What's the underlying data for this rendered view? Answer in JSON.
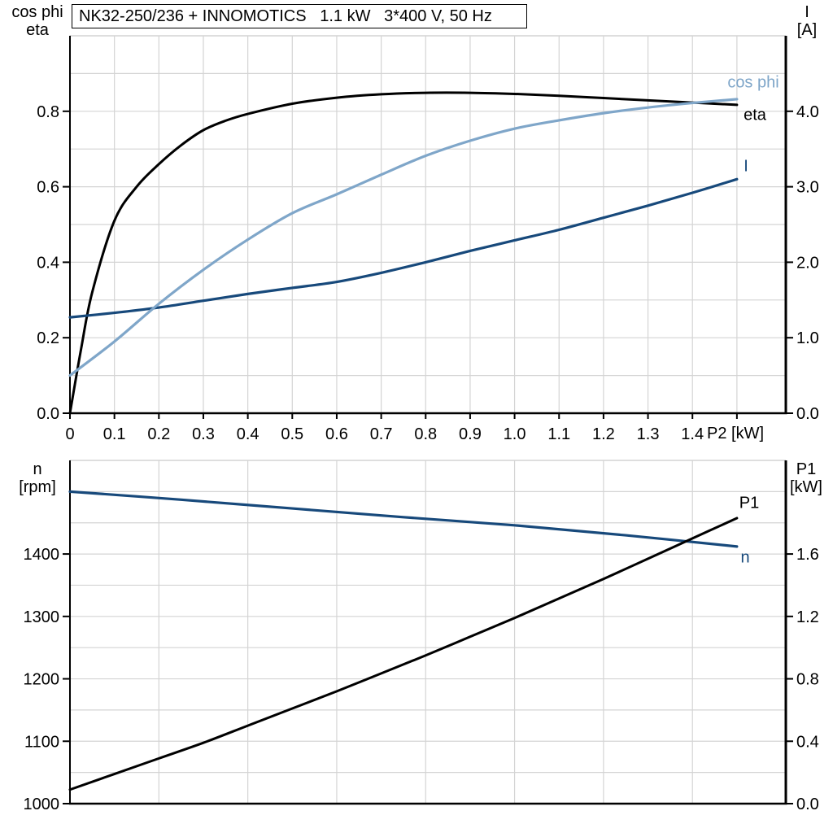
{
  "title": "NK32-250/236 + INNOMOTICS   1.1 kW   3*400 V, 50 Hz",
  "colors": {
    "eta": "#000000",
    "cos_phi": "#7FA6C9",
    "current": "#17497B",
    "speed": "#17497B",
    "p1": "#000000",
    "grid": "#D4D4D4",
    "axis": "#000000",
    "background": "#FFFFFF"
  },
  "chart_data": [
    {
      "id": "electrical",
      "type": "line",
      "x": {
        "min": 0,
        "max": 1.61,
        "grid_step": 0.1,
        "ticks": [
          0,
          0.1,
          0.2,
          0.3,
          0.4,
          0.5,
          0.6,
          0.7,
          0.8,
          0.9,
          1.0,
          1.1,
          1.2,
          1.3,
          1.4,
          1.5
        ],
        "labels": [
          "0",
          "0.1",
          "0.2",
          "0.3",
          "0.4",
          "0.5",
          "0.6",
          "0.7",
          "0.8",
          "0.9",
          "1.0",
          "1.1",
          "1.2",
          "1.3",
          "1.4",
          ""
        ],
        "unit_label": "P2 [kW]"
      },
      "y_left": {
        "min": 0,
        "max": 1.0,
        "grid_step": 0.1,
        "ticks": [
          0,
          0.2,
          0.4,
          0.6,
          0.8
        ],
        "labels": [
          "0.0",
          "0.2",
          "0.4",
          "0.6",
          "0.8"
        ],
        "header": [
          "cos phi",
          "eta"
        ]
      },
      "y_right": {
        "min": 0,
        "max": 5.0,
        "grid_step": 0.5,
        "ticks": [
          0,
          1,
          2,
          3,
          4
        ],
        "labels": [
          "0.0",
          "1.0",
          "2.0",
          "3.0",
          "4.0"
        ],
        "header": [
          "I",
          "[A]"
        ]
      },
      "series": [
        {
          "id": "eta",
          "label": "eta",
          "axis": "left",
          "color": "#000000",
          "width": 3,
          "x": [
            0,
            0.025,
            0.05,
            0.1,
            0.15,
            0.2,
            0.25,
            0.3,
            0.35,
            0.4,
            0.5,
            0.6,
            0.7,
            0.8,
            0.9,
            1.0,
            1.1,
            1.2,
            1.3,
            1.4,
            1.5
          ],
          "y": [
            0,
            0.17,
            0.32,
            0.51,
            0.6,
            0.66,
            0.71,
            0.75,
            0.775,
            0.793,
            0.82,
            0.836,
            0.845,
            0.849,
            0.849,
            0.846,
            0.841,
            0.835,
            0.829,
            0.823,
            0.817
          ]
        },
        {
          "id": "current-I",
          "label": "I",
          "axis": "right",
          "color": "#17497B",
          "width": 3.2,
          "x": [
            0,
            0.1,
            0.2,
            0.3,
            0.4,
            0.5,
            0.6,
            0.7,
            0.8,
            0.9,
            1.0,
            1.1,
            1.2,
            1.3,
            1.4,
            1.5
          ],
          "y": [
            1.27,
            1.33,
            1.4,
            1.49,
            1.58,
            1.66,
            1.74,
            1.86,
            2.0,
            2.15,
            2.29,
            2.43,
            2.59,
            2.75,
            2.92,
            3.1
          ]
        },
        {
          "id": "cos-phi",
          "label": "cos phi",
          "axis": "left",
          "color": "#7FA6C9",
          "width": 3.2,
          "x": [
            0,
            0.1,
            0.2,
            0.3,
            0.4,
            0.5,
            0.6,
            0.7,
            0.8,
            0.9,
            1.0,
            1.1,
            1.2,
            1.3,
            1.4,
            1.5
          ],
          "y": [
            0.1,
            0.19,
            0.29,
            0.38,
            0.46,
            0.53,
            0.58,
            0.632,
            0.682,
            0.722,
            0.754,
            0.776,
            0.795,
            0.81,
            0.822,
            0.832
          ]
        }
      ]
    },
    {
      "id": "speed-power",
      "type": "line",
      "x": {
        "min": 0,
        "max": 1.61,
        "grid_step": 0.2,
        "ticks": [],
        "labels": [],
        "unit_label": ""
      },
      "y_left": {
        "min": 1000,
        "max": 1550,
        "grid_step": 50,
        "ticks": [
          1000,
          1100,
          1200,
          1300,
          1400
        ],
        "labels": [
          "1000",
          "1100",
          "1200",
          "1300",
          "1400"
        ],
        "header": [
          "n",
          "[rpm]"
        ]
      },
      "y_right": {
        "min": 0,
        "max": 2.2,
        "grid_step": 0.2,
        "ticks": [
          0,
          0.4,
          0.8,
          1.2,
          1.6
        ],
        "labels": [
          "0.0",
          "0.4",
          "0.8",
          "1.2",
          "1.6"
        ],
        "header": [
          "P1",
          "[kW]"
        ]
      },
      "series": [
        {
          "id": "speed-n",
          "label": "n",
          "axis": "left",
          "color": "#17497B",
          "width": 3.2,
          "x": [
            0,
            0.25,
            0.5,
            0.75,
            1.0,
            1.25,
            1.5
          ],
          "y": [
            1500,
            1487,
            1473,
            1459,
            1446,
            1430,
            1412
          ]
        },
        {
          "id": "power-P1",
          "label": "P1",
          "axis": "right",
          "color": "#000000",
          "width": 3,
          "x": [
            0,
            0.1,
            0.2,
            0.3,
            0.4,
            0.5,
            0.6,
            0.7,
            0.8,
            0.9,
            1.0,
            1.1,
            1.2,
            1.3,
            1.4,
            1.5
          ],
          "y": [
            0.09,
            0.19,
            0.29,
            0.39,
            0.5,
            0.61,
            0.72,
            0.835,
            0.95,
            1.07,
            1.19,
            1.315,
            1.44,
            1.57,
            1.7,
            1.83
          ]
        }
      ]
    }
  ]
}
